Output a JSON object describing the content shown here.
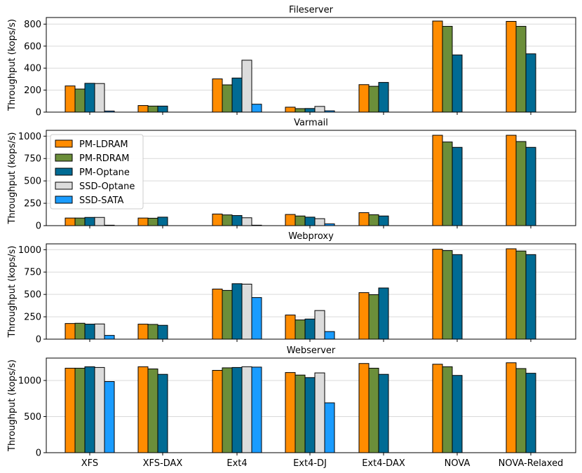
{
  "chart_data": [
    {
      "type": "bar",
      "title": "Fileserver",
      "ylabel": "Throughput (kops/s)",
      "xlabel": "",
      "ylim": [
        0,
        860
      ],
      "yticks": [
        0,
        200,
        400,
        600,
        800
      ],
      "categories": [
        "XFS",
        "XFS-DAX",
        "Ext4",
        "Ext4-DJ",
        "Ext4-DAX",
        "NOVA",
        "NOVA-Relaxed"
      ],
      "series": [
        {
          "name": "PM-LDRAM",
          "values": [
            238,
            60,
            302,
            45,
            250,
            828,
            825
          ]
        },
        {
          "name": "PM-RDRAM",
          "values": [
            210,
            55,
            248,
            32,
            235,
            780,
            780
          ]
        },
        {
          "name": "PM-Optane",
          "values": [
            262,
            55,
            310,
            33,
            270,
            520,
            530
          ]
        },
        {
          "name": "SSD-Optane",
          "values": [
            260,
            0,
            472,
            52,
            0,
            0,
            0
          ]
        },
        {
          "name": "SSD-SATA",
          "values": [
            10,
            0,
            72,
            12,
            0,
            0,
            0
          ]
        }
      ],
      "grid": "horizontal"
    },
    {
      "type": "bar",
      "title": "Varmail",
      "ylabel": "Throughput (kops/s)",
      "xlabel": "",
      "ylim": [
        0,
        1065
      ],
      "yticks": [
        0,
        250,
        500,
        750,
        1000
      ],
      "categories": [
        "XFS",
        "XFS-DAX",
        "Ext4",
        "Ext4-DJ",
        "Ext4-DAX",
        "NOVA",
        "NOVA-Relaxed"
      ],
      "series": [
        {
          "name": "PM-LDRAM",
          "values": [
            85,
            85,
            130,
            125,
            145,
            1010,
            1010
          ]
        },
        {
          "name": "PM-RDRAM",
          "values": [
            85,
            83,
            120,
            108,
            122,
            935,
            940
          ]
        },
        {
          "name": "PM-Optane",
          "values": [
            92,
            95,
            113,
            95,
            108,
            875,
            875
          ]
        },
        {
          "name": "SSD-Optane",
          "values": [
            92,
            0,
            88,
            78,
            0,
            0,
            0
          ]
        },
        {
          "name": "SSD-SATA",
          "values": [
            5,
            0,
            5,
            20,
            0,
            0,
            0
          ]
        }
      ],
      "legend": "upper-left",
      "grid": "horizontal"
    },
    {
      "type": "bar",
      "title": "Webproxy",
      "ylabel": "Throughput (kops/s)",
      "xlabel": "",
      "ylim": [
        0,
        1065
      ],
      "yticks": [
        0,
        250,
        500,
        750,
        1000
      ],
      "categories": [
        "XFS",
        "XFS-DAX",
        "Ext4",
        "Ext4-DJ",
        "Ext4-DAX",
        "NOVA",
        "NOVA-Relaxed"
      ],
      "series": [
        {
          "name": "PM-LDRAM",
          "values": [
            175,
            168,
            560,
            270,
            520,
            1005,
            1010
          ]
        },
        {
          "name": "PM-RDRAM",
          "values": [
            178,
            165,
            545,
            215,
            497,
            990,
            985
          ]
        },
        {
          "name": "PM-Optane",
          "values": [
            168,
            155,
            620,
            225,
            572,
            945,
            945
          ]
        },
        {
          "name": "SSD-Optane",
          "values": [
            170,
            0,
            615,
            320,
            0,
            0,
            0
          ]
        },
        {
          "name": "SSD-SATA",
          "values": [
            42,
            0,
            465,
            85,
            0,
            0,
            0
          ]
        }
      ],
      "grid": "horizontal"
    },
    {
      "type": "bar",
      "title": "Webserver",
      "ylabel": "Throughput (kops/s)",
      "xlabel": "",
      "ylim": [
        0,
        1310
      ],
      "yticks": [
        0,
        500,
        1000
      ],
      "categories": [
        "XFS",
        "XFS-DAX",
        "Ext4",
        "Ext4-DJ",
        "Ext4-DAX",
        "NOVA",
        "NOVA-Relaxed"
      ],
      "series": [
        {
          "name": "PM-LDRAM",
          "values": [
            1170,
            1190,
            1140,
            1110,
            1235,
            1225,
            1245
          ]
        },
        {
          "name": "PM-RDRAM",
          "values": [
            1170,
            1160,
            1175,
            1075,
            1170,
            1190,
            1165
          ]
        },
        {
          "name": "PM-Optane",
          "values": [
            1190,
            1085,
            1180,
            1040,
            1085,
            1070,
            1100
          ]
        },
        {
          "name": "SSD-Optane",
          "values": [
            1180,
            0,
            1190,
            1105,
            0,
            0,
            0
          ]
        },
        {
          "name": "SSD-SATA",
          "values": [
            985,
            0,
            1185,
            690,
            0,
            0,
            0
          ]
        }
      ],
      "grid": "horizontal"
    }
  ],
  "colors": {
    "PM-LDRAM": "#ff8c00",
    "PM-RDRAM": "#6b8e3a",
    "PM-Optane": "#006b94",
    "SSD-Optane": "#dcdcdc",
    "SSD-SATA": "#1a9cff",
    "grid": "#d9d9d9",
    "axis": "#000000"
  }
}
